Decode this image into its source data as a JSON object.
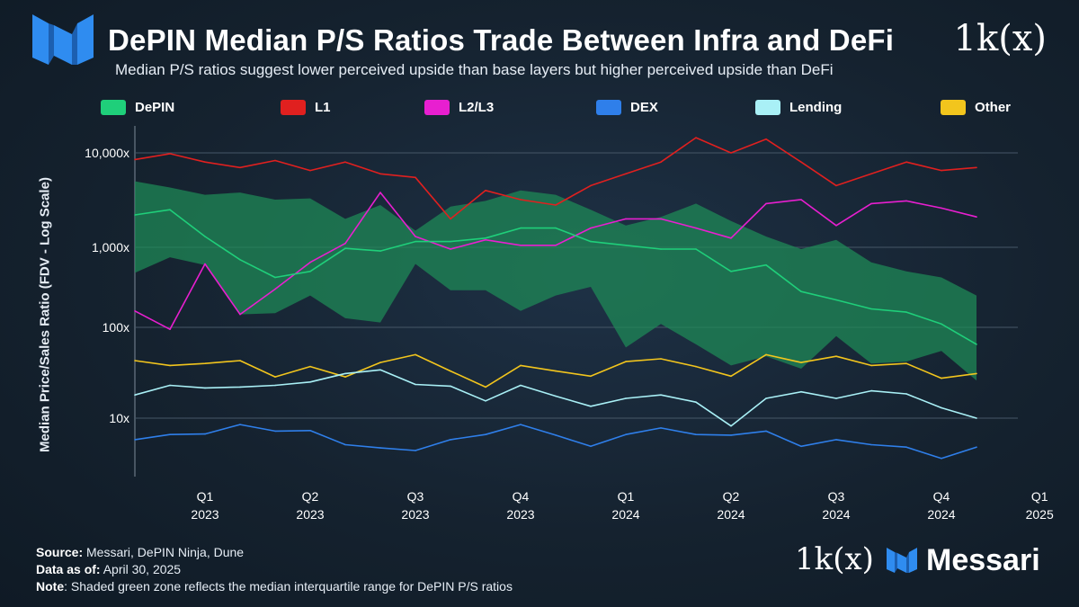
{
  "header": {
    "title": "DePIN Median P/S Ratios Trade Between Infra and DeFi",
    "subtitle": "Median P/S ratios suggest lower perceived upside than base layers but higher perceived upside than DeFi",
    "brand": "1k(x)",
    "logo_icon": "messari-m-icon"
  },
  "footer": {
    "source_label": "Source:",
    "source": "Messari, DePIN Ninja, Dune",
    "asof_label": "Data as of:",
    "asof": "April 30, 2025",
    "note_label": "Note",
    "note": ": Shaded green zone reflects the median interquartile range for DePIN P/S ratios",
    "brand_1k": "1k(x)",
    "brand_name": "Messari"
  },
  "colors": {
    "DePIN": "#1fcf7a",
    "L1": "#e0201f",
    "L2/L3": "#e81fd0",
    "DEX": "#2f7fea",
    "Lending": "#a9f0f6",
    "Other": "#f2c51d",
    "band": "#1e8c57"
  },
  "chart_data": {
    "type": "line",
    "title": "DePIN Median P/S Ratios Trade Between Infra and DeFi",
    "xlabel": "",
    "ylabel": "Median Price/Sales Ratio (FDV - Log Scale)",
    "yscale": "log",
    "ylim": [
      3,
      15000
    ],
    "yticks": [
      {
        "value": 10,
        "label": "10x"
      },
      {
        "value": 100,
        "label": "100x"
      },
      {
        "value": 1000,
        "label": "1,000x"
      },
      {
        "value": 10000,
        "label": "10,000x"
      }
    ],
    "x_count": 27,
    "xticks": [
      {
        "index": 2,
        "label": "Q1",
        "sub": "2023"
      },
      {
        "index": 5,
        "label": "Q2",
        "sub": "2023"
      },
      {
        "index": 8,
        "label": "Q3",
        "sub": "2023"
      },
      {
        "index": 11,
        "label": "Q4",
        "sub": "2023"
      },
      {
        "index": 14,
        "label": "Q1",
        "sub": "2024"
      },
      {
        "index": 17,
        "label": "Q2",
        "sub": "2024"
      },
      {
        "index": 20,
        "label": "Q3",
        "sub": "2024"
      },
      {
        "index": 23,
        "label": "Q4",
        "sub": "2024"
      },
      {
        "index": 25.8,
        "label": "Q1",
        "sub": "2025"
      }
    ],
    "legend": [
      "DePIN",
      "L1",
      "L2/L3",
      "DEX",
      "Lending",
      "Other"
    ],
    "band": {
      "name": "DePIN IQR",
      "upper": [
        5000,
        4300,
        3600,
        3800,
        3200,
        3300,
        2000,
        2800,
        1500,
        2700,
        3100,
        4000,
        3600,
        2500,
        1700,
        2100,
        2900,
        1900,
        1300,
        950,
        1200,
        650,
        500,
        420,
        250
      ],
      "lower": [
        480,
        750,
        600,
        145,
        150,
        250,
        130,
        115,
        620,
        290,
        290,
        160,
        250,
        320,
        60,
        110,
        65,
        38,
        48,
        35,
        80,
        40,
        42,
        55,
        26
      ]
    },
    "series": [
      {
        "name": "DePIN",
        "values": [
          2200,
          2500,
          1300,
          700,
          420,
          500,
          970,
          900,
          1150,
          1150,
          1250,
          1600,
          1600,
          1150,
          1050,
          950,
          950,
          500,
          600,
          280,
          220,
          170,
          155,
          110,
          65
        ]
      },
      {
        "name": "L1",
        "values": [
          8500,
          9800,
          8000,
          7000,
          8300,
          6500,
          8000,
          6000,
          5500,
          2000,
          4000,
          3200,
          2800,
          4500,
          6000,
          8000,
          14500,
          10000,
          14000,
          8000,
          4500,
          6000,
          8000,
          6500,
          7000
        ]
      },
      {
        "name": "L2/L3",
        "values": [
          160,
          95,
          620,
          145,
          300,
          650,
          1100,
          3800,
          1300,
          950,
          1200,
          1050,
          1050,
          1600,
          2000,
          2000,
          1600,
          1250,
          2900,
          3200,
          1700,
          2900,
          3100,
          2600,
          2100
        ]
      },
      {
        "name": "DEX",
        "values": [
          5.8,
          6.6,
          6.7,
          8.5,
          7.2,
          7.3,
          5.1,
          4.7,
          4.4,
          5.8,
          6.6,
          8.5,
          6.5,
          4.9,
          6.6,
          7.8,
          6.6,
          6.5,
          7.2,
          4.9,
          5.8,
          5.1,
          4.8,
          3.6,
          4.8
        ]
      },
      {
        "name": "Lending",
        "values": [
          18,
          23,
          21.5,
          22,
          23,
          25,
          31,
          34,
          23.5,
          22.5,
          15.5,
          23,
          17.5,
          13.5,
          16.5,
          18,
          15,
          8.2,
          16.5,
          19.5,
          16.5,
          20,
          18.5,
          13,
          10
        ]
      },
      {
        "name": "Other",
        "values": [
          43,
          38,
          40,
          43,
          28.5,
          37,
          28.5,
          41,
          50,
          33,
          22,
          38,
          33,
          29,
          42,
          45,
          37,
          29,
          50,
          41,
          48,
          38,
          40,
          27.5,
          31
        ]
      }
    ]
  }
}
